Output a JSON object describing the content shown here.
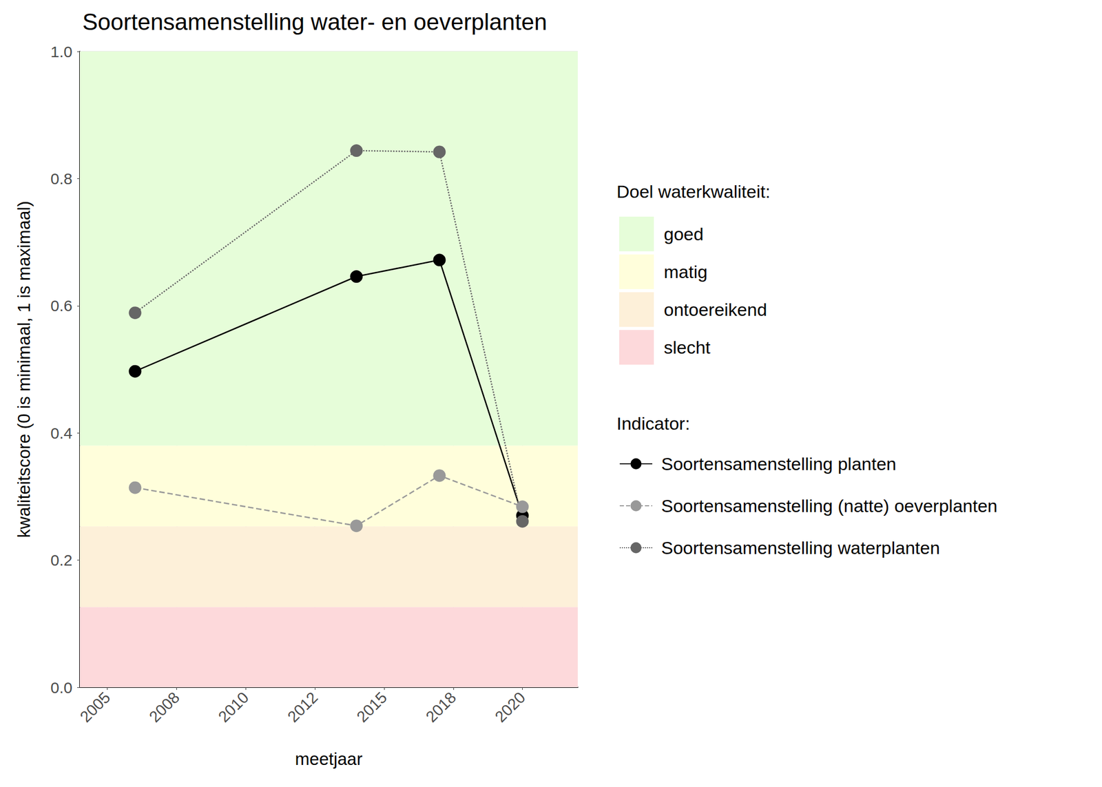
{
  "chart_data": {
    "type": "line",
    "title": "Soortensamenstelling water- en oeverplanten",
    "x_label": "meetjaar",
    "y_label": "kwaliteitscore (0 is minimaal, 1 is maximaal)",
    "x": [
      2006,
      2014,
      2017,
      2020
    ],
    "series": [
      {
        "name": "Soortensamenstelling planten",
        "color": "#000000",
        "line_style": "solid",
        "marker": "circle",
        "values": [
          0.497,
          0.646,
          0.672,
          0.27
        ]
      },
      {
        "name": "Soortensamenstelling (natte) oeverplanten",
        "color": "#999999",
        "line_style": "dashed",
        "marker": "circle",
        "values": [
          0.314,
          0.254,
          0.333,
          0.284
        ]
      },
      {
        "name": "Soortensamenstelling waterplanten",
        "color": "#666666",
        "line_style": "dotted",
        "marker": "circle",
        "values": [
          0.589,
          0.844,
          0.842,
          0.261
        ]
      }
    ],
    "xlim": [
      2004,
      2022
    ],
    "xticks": [
      2005,
      {
        "value": 2007.5,
        "label": "2008"
      },
      2010,
      {
        "value": 2012.5,
        "label": "2012"
      },
      2015,
      {
        "value": 2017.5,
        "label": "2018"
      },
      2020
    ],
    "ylim": [
      0,
      1
    ],
    "yticks": [
      {
        "value": 0,
        "label": "0.0"
      },
      0.2,
      0.4,
      0.6,
      0.8,
      {
        "value": 1,
        "label": "1.0"
      }
    ],
    "grid": true,
    "legend": "right",
    "band_legend_title": "Doel waterkwaliteit:",
    "series_legend_title": "Indicator:",
    "bands": [
      {
        "name": "goed",
        "from": 0.38,
        "to": 1,
        "color": "#e6fdd9"
      },
      {
        "name": "matig",
        "from": 0.253,
        "to": 0.38,
        "color": "#fffedb"
      },
      {
        "name": "ontoereikend",
        "from": 0.126,
        "to": 0.253,
        "color": "#fdf0d9"
      },
      {
        "name": "slecht",
        "from": 0,
        "to": 0.126,
        "color": "#fdd9db"
      }
    ]
  }
}
